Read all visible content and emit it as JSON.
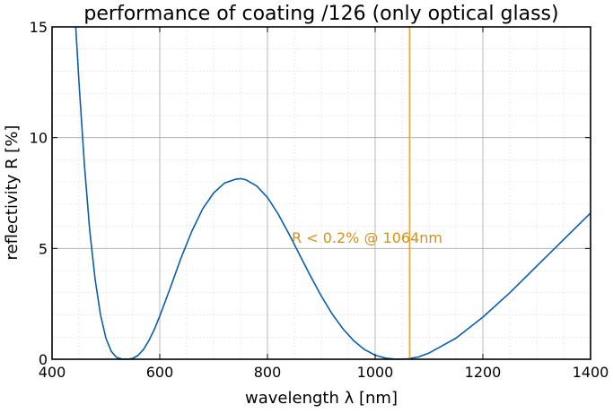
{
  "chart_data": {
    "type": "line",
    "title": "performance of coating /126 (only optical glass)",
    "xlabel": "wavelength λ [nm]",
    "ylabel": "reflectivity R [%]",
    "xlim": [
      400,
      1400
    ],
    "ylim": [
      0,
      15
    ],
    "x_ticks": [
      400,
      600,
      800,
      1000,
      1200,
      1400
    ],
    "y_ticks": [
      0,
      5,
      10,
      15
    ],
    "x_tick_labels": [
      "400",
      "600",
      "800",
      "1000",
      "1200",
      "1400"
    ],
    "y_tick_labels": [
      "0",
      "5",
      "10",
      "15"
    ],
    "grid": true,
    "minor_grid": true,
    "series": [
      {
        "color": "#0a5fa8",
        "points": [
          [
            444,
            15.0
          ],
          [
            450,
            12.5
          ],
          [
            460,
            8.8
          ],
          [
            470,
            5.8
          ],
          [
            480,
            3.6
          ],
          [
            490,
            2.0
          ],
          [
            500,
            0.95
          ],
          [
            510,
            0.35
          ],
          [
            520,
            0.08
          ],
          [
            530,
            0.01
          ],
          [
            540,
            0.0
          ],
          [
            550,
            0.04
          ],
          [
            560,
            0.18
          ],
          [
            570,
            0.45
          ],
          [
            580,
            0.85
          ],
          [
            590,
            1.35
          ],
          [
            600,
            1.95
          ],
          [
            620,
            3.25
          ],
          [
            640,
            4.6
          ],
          [
            660,
            5.8
          ],
          [
            680,
            6.8
          ],
          [
            700,
            7.5
          ],
          [
            720,
            7.95
          ],
          [
            740,
            8.12
          ],
          [
            750,
            8.15
          ],
          [
            760,
            8.1
          ],
          [
            780,
            7.82
          ],
          [
            800,
            7.3
          ],
          [
            820,
            6.55
          ],
          [
            840,
            5.65
          ],
          [
            860,
            4.7
          ],
          [
            880,
            3.75
          ],
          [
            900,
            2.85
          ],
          [
            920,
            2.05
          ],
          [
            940,
            1.38
          ],
          [
            960,
            0.84
          ],
          [
            980,
            0.44
          ],
          [
            1000,
            0.18
          ],
          [
            1020,
            0.05
          ],
          [
            1040,
            0.0
          ],
          [
            1060,
            0.02
          ],
          [
            1080,
            0.1
          ],
          [
            1100,
            0.28
          ],
          [
            1150,
            0.95
          ],
          [
            1200,
            1.9
          ],
          [
            1250,
            3.0
          ],
          [
            1300,
            4.2
          ],
          [
            1350,
            5.4
          ],
          [
            1400,
            6.6
          ]
        ]
      }
    ],
    "annotations": [
      {
        "type": "vline",
        "x": 1064,
        "color": "#e8a33a"
      },
      {
        "type": "text",
        "text": "R < 0.2% @ 1064nm",
        "x": 985,
        "y": 5.25,
        "color": "#d4921c"
      }
    ]
  }
}
